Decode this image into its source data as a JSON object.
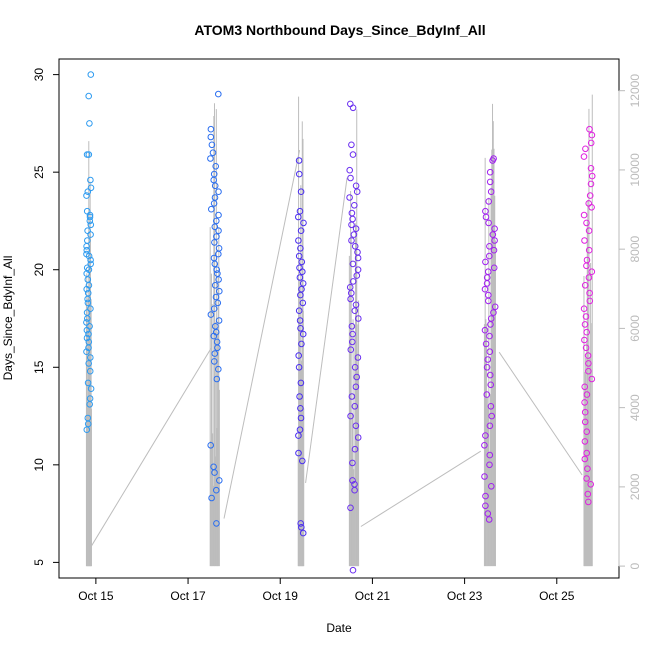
{
  "chart_data": {
    "type": "scatter",
    "title": "ATOM3 Northbound Days_Since_BdyInf_All",
    "xlabel": "Date",
    "ylabel": "Days_Since_BdyInf_All",
    "x_ticks": [
      "Oct 15",
      "Oct 17",
      "Oct 19",
      "Oct 21",
      "Oct 23",
      "Oct 25"
    ],
    "x_tick_days": [
      15,
      17,
      19,
      21,
      23,
      25
    ],
    "xlim_days": [
      14.2,
      26.35
    ],
    "ylim": [
      4.2,
      30.8
    ],
    "y_ticks": [
      5,
      10,
      15,
      20,
      25,
      30
    ],
    "y2lim": [
      -300,
      12800
    ],
    "y2_ticks": [
      0,
      2000,
      4000,
      6000,
      8000,
      10000,
      12000
    ],
    "grid": false,
    "point_colors": [
      "#2e9bf0",
      "#2a6ef0",
      "#4a2ef0",
      "#6a2ef0",
      "#a020f0",
      "#e020e0"
    ],
    "line_color": "#bdbdbd",
    "clusters": [
      {
        "day": 14.85,
        "width": 0.11,
        "color": "#2e9bf0",
        "y": [
          28.9,
          30.0,
          27.5,
          25.9,
          25.9,
          24.6,
          24.2,
          24.0,
          23.8,
          23.0,
          22.8,
          22.7,
          22.5,
          22.3,
          22.0,
          21.8,
          21.5,
          21.2,
          21.0,
          20.8,
          20.7,
          20.5,
          20.3,
          20.1,
          20.0,
          19.8,
          19.5,
          19.2,
          19.0,
          18.8,
          18.5,
          18.3,
          18.0,
          17.8,
          17.5,
          17.3,
          17.1,
          16.9,
          16.7,
          16.5,
          16.3,
          16.0,
          15.8,
          15.5,
          15.2,
          14.8,
          14.2,
          13.9,
          13.4,
          13.1,
          12.4,
          12.1,
          11.8
        ]
      },
      {
        "day": 17.58,
        "width": 0.2,
        "color": "#2a6ef0",
        "y": [
          29.0,
          27.2,
          26.8,
          26.4,
          26.0,
          25.7,
          25.3,
          24.9,
          24.6,
          24.3,
          24.0,
          23.7,
          23.4,
          23.1,
          22.8,
          22.5,
          22.2,
          22.0,
          21.7,
          21.4,
          21.1,
          20.8,
          20.6,
          20.3,
          20.0,
          19.8,
          19.5,
          19.2,
          18.9,
          18.6,
          18.3,
          18.0,
          17.7,
          17.4,
          17.1,
          16.8,
          16.6,
          16.3,
          16.0,
          15.7,
          15.3,
          14.9,
          14.4,
          11.0,
          9.9,
          9.6,
          9.2,
          8.7,
          8.3,
          7.0
        ]
      },
      {
        "day": 19.45,
        "width": 0.12,
        "color": "#4a2ef0",
        "y": [
          25.6,
          24.9,
          24.0,
          23.0,
          22.7,
          22.4,
          22.0,
          21.5,
          21.1,
          20.7,
          20.4,
          20.1,
          19.9,
          19.6,
          19.3,
          19.0,
          18.7,
          18.3,
          17.9,
          17.4,
          17.0,
          16.7,
          16.2,
          15.6,
          15.0,
          14.2,
          13.5,
          12.9,
          12.4,
          11.8,
          11.5,
          10.6,
          10.2,
          7.0,
          6.8,
          6.5
        ]
      },
      {
        "day": 20.6,
        "width": 0.2,
        "color": "#6a2ef0",
        "y": [
          28.5,
          28.3,
          26.4,
          25.9,
          25.1,
          24.7,
          24.3,
          24.0,
          23.7,
          23.3,
          22.9,
          22.6,
          22.3,
          22.1,
          21.8,
          21.5,
          21.2,
          20.9,
          20.6,
          20.3,
          20.0,
          19.7,
          19.4,
          19.1,
          18.8,
          18.5,
          18.2,
          17.9,
          17.5,
          17.1,
          16.7,
          16.3,
          15.9,
          15.5,
          15.0,
          14.5,
          14.0,
          13.5,
          13.0,
          12.5,
          12.0,
          11.4,
          10.8,
          10.1,
          9.2,
          9.0,
          8.7,
          7.8,
          4.6
        ]
      },
      {
        "day": 23.55,
        "width": 0.24,
        "color": "#a020f0",
        "y": [
          25.7,
          25.6,
          25.0,
          24.5,
          24.0,
          23.5,
          23.0,
          22.7,
          22.4,
          22.1,
          21.8,
          21.5,
          21.2,
          21.0,
          20.7,
          20.4,
          20.1,
          19.9,
          19.6,
          19.3,
          19.0,
          18.7,
          18.4,
          18.1,
          17.8,
          17.5,
          17.2,
          16.9,
          16.6,
          16.2,
          15.8,
          15.4,
          15.0,
          14.6,
          14.1,
          13.6,
          13.0,
          12.5,
          12.0,
          11.5,
          11.0,
          10.5,
          10.0,
          9.4,
          8.9,
          8.4,
          7.9,
          7.5,
          7.2
        ]
      },
      {
        "day": 25.68,
        "width": 0.18,
        "color": "#e020e0",
        "y": [
          27.2,
          26.9,
          26.5,
          26.2,
          25.8,
          25.2,
          24.8,
          24.4,
          23.8,
          23.4,
          23.2,
          22.8,
          22.4,
          22.0,
          21.5,
          21.0,
          20.5,
          20.2,
          19.9,
          19.6,
          19.2,
          18.8,
          18.4,
          18.0,
          17.6,
          17.2,
          16.8,
          16.4,
          16.0,
          15.6,
          15.2,
          14.8,
          14.4,
          14.0,
          13.6,
          13.2,
          12.7,
          12.2,
          11.7,
          11.2,
          10.6,
          10.3,
          9.8,
          9.3,
          9.0,
          8.5,
          8.1
        ]
      }
    ],
    "secondary_line": {
      "axis": "y2",
      "gaps": [
        {
          "x": [
            14.9,
            17.5
          ],
          "y2": [
            500,
            5500
          ]
        },
        {
          "x": [
            17.78,
            19.42
          ],
          "y2": [
            1200,
            10500
          ]
        },
        {
          "x": [
            19.55,
            20.45
          ],
          "y2": [
            2100,
            9800
          ]
        },
        {
          "x": [
            20.75,
            23.35
          ],
          "y2": [
            1000,
            2900
          ]
        },
        {
          "x": [
            23.75,
            25.55
          ],
          "y2": [
            5400,
            2300
          ]
        }
      ]
    }
  }
}
